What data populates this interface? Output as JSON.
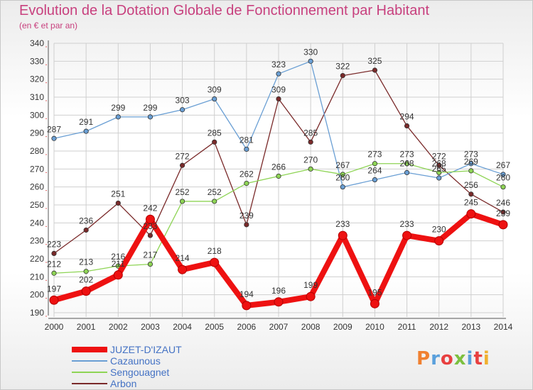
{
  "header": {
    "title": "Evolution de la Dotation Globale de Fonctionnement par Habitant",
    "subtitle": "(en € et par an)"
  },
  "logo": {
    "text": "Proxiti",
    "colors": [
      "#f08030",
      "#5aa0dc",
      "#e84040",
      "#7cc040",
      "#5aa0dc",
      "#e84040",
      "#f0b030"
    ]
  },
  "chart_data": {
    "type": "line",
    "x": [
      "2000",
      "2001",
      "2002",
      "2003",
      "2004",
      "2005",
      "2006",
      "2007",
      "2008",
      "2009",
      "2010",
      "2011",
      "2012",
      "2013",
      "2014"
    ],
    "ylim": [
      190,
      340
    ],
    "yticks": [
      190,
      200,
      210,
      220,
      230,
      240,
      250,
      260,
      270,
      280,
      290,
      300,
      310,
      320,
      330,
      340
    ],
    "grid": true,
    "legend_position": "bottom-left",
    "series": [
      {
        "name": "JUZET-D'IZAUT",
        "color": "#ee1111",
        "values": [
          197,
          202,
          211,
          242,
          214,
          218,
          194,
          196,
          199,
          233,
          195,
          233,
          230,
          245,
          239
        ]
      },
      {
        "name": "Cazaunous",
        "color": "#6a9fd4",
        "values": [
          287,
          291,
          299,
          299,
          303,
          309,
          281,
          323,
          330,
          260,
          264,
          268,
          265,
          273,
          267
        ]
      },
      {
        "name": "Sengouagnet",
        "color": "#8ed455",
        "values": [
          212,
          213,
          216,
          217,
          252,
          252,
          262,
          266,
          270,
          267,
          273,
          273,
          268,
          269,
          260
        ]
      },
      {
        "name": "Arbon",
        "color": "#7a2a2a",
        "values": [
          223,
          236,
          251,
          233,
          272,
          285,
          239,
          309,
          285,
          322,
          325,
          294,
          272,
          256,
          246
        ]
      }
    ]
  }
}
